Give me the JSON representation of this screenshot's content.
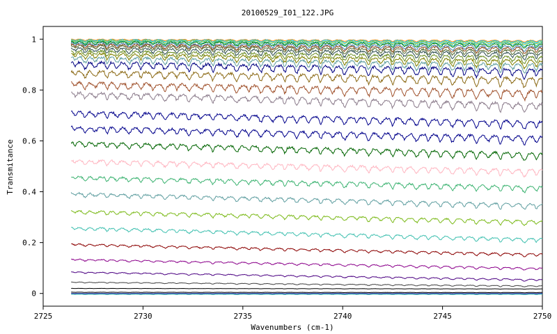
{
  "chart_data": {
    "type": "line",
    "title": "20100529_I01_122.JPG",
    "xlabel": "Wavenumbers (cm-1)",
    "ylabel": "Transmitance",
    "xlim": [
      2725,
      2750
    ],
    "ylim": [
      -0.05,
      1.05
    ],
    "x_ticks": [
      2725,
      2730,
      2735,
      2740,
      2745,
      2750
    ],
    "y_ticks": [
      0,
      0.2,
      0.4,
      0.6,
      0.8,
      1
    ],
    "y_tick_labels": [
      "0",
      "0.2",
      "0.4",
      "0.6",
      "0.8",
      "1"
    ],
    "x_range_of_data": [
      2726.4,
      2750
    ],
    "grid": false,
    "legend": "none",
    "absorption_lines_cm1": [
      2726.6,
      2727.1,
      2727.6,
      2728.2,
      2728.7,
      2729.3,
      2729.9,
      2730.5,
      2731.1,
      2731.7,
      2732.3,
      2732.9,
      2733.5,
      2734.1,
      2734.7,
      2735.3,
      2735.9,
      2736.5,
      2737.1,
      2737.7,
      2738.3,
      2738.9,
      2739.5,
      2740.1,
      2740.7,
      2741.3,
      2741.9,
      2742.5,
      2743.1,
      2743.7,
      2744.3,
      2744.9,
      2745.5,
      2746.1,
      2746.7,
      2747.3,
      2747.9,
      2748.5,
      2749.1,
      2749.7
    ],
    "series": [
      {
        "baseline_start": 1.0,
        "baseline_end": 0.995,
        "depth": 0.006,
        "color": "#ff8c00"
      },
      {
        "baseline_start": 0.998,
        "baseline_end": 0.993,
        "depth": 0.008,
        "color": "#00bfff"
      },
      {
        "baseline_start": 0.996,
        "baseline_end": 0.99,
        "depth": 0.01,
        "color": "#9acd32"
      },
      {
        "baseline_start": 0.993,
        "baseline_end": 0.985,
        "depth": 0.012,
        "color": "#20b2aa"
      },
      {
        "baseline_start": 0.99,
        "baseline_end": 0.98,
        "depth": 0.014,
        "color": "#008000"
      },
      {
        "baseline_start": 0.985,
        "baseline_end": 0.972,
        "depth": 0.016,
        "color": "#4682b4"
      },
      {
        "baseline_start": 0.98,
        "baseline_end": 0.965,
        "depth": 0.018,
        "color": "#8b4513"
      },
      {
        "baseline_start": 0.975,
        "baseline_end": 0.955,
        "depth": 0.02,
        "color": "#556b2f"
      },
      {
        "baseline_start": 0.965,
        "baseline_end": 0.945,
        "depth": 0.022,
        "color": "#2f4f4f"
      },
      {
        "baseline_start": 0.955,
        "baseline_end": 0.93,
        "depth": 0.024,
        "color": "#6b8e23"
      },
      {
        "baseline_start": 0.945,
        "baseline_end": 0.915,
        "depth": 0.026,
        "color": "#808000"
      },
      {
        "baseline_start": 0.93,
        "baseline_end": 0.9,
        "depth": 0.028,
        "color": "#5f9ea0"
      },
      {
        "baseline_start": 0.91,
        "baseline_end": 0.88,
        "depth": 0.03,
        "color": "#000080"
      },
      {
        "baseline_start": 0.875,
        "baseline_end": 0.845,
        "depth": 0.03,
        "color": "#8b6914"
      },
      {
        "baseline_start": 0.83,
        "baseline_end": 0.795,
        "depth": 0.03,
        "color": "#a0522d"
      },
      {
        "baseline_start": 0.79,
        "baseline_end": 0.745,
        "depth": 0.028,
        "color": "#8b7b8b"
      },
      {
        "baseline_start": 0.715,
        "baseline_end": 0.675,
        "depth": 0.026,
        "color": "#00008b"
      },
      {
        "baseline_start": 0.655,
        "baseline_end": 0.615,
        "depth": 0.026,
        "color": "#00008b"
      },
      {
        "baseline_start": 0.595,
        "baseline_end": 0.55,
        "depth": 0.024,
        "color": "#006400"
      },
      {
        "baseline_start": 0.525,
        "baseline_end": 0.485,
        "depth": 0.022,
        "color": "#ffb6c1"
      },
      {
        "baseline_start": 0.46,
        "baseline_end": 0.42,
        "depth": 0.02,
        "color": "#3cb371"
      },
      {
        "baseline_start": 0.395,
        "baseline_end": 0.35,
        "depth": 0.018,
        "color": "#5f9ea0"
      },
      {
        "baseline_start": 0.325,
        "baseline_end": 0.285,
        "depth": 0.016,
        "color": "#7cba1a"
      },
      {
        "baseline_start": 0.26,
        "baseline_end": 0.215,
        "depth": 0.014,
        "color": "#40c0b0"
      },
      {
        "baseline_start": 0.195,
        "baseline_end": 0.155,
        "depth": 0.01,
        "color": "#8b0000"
      },
      {
        "baseline_start": 0.135,
        "baseline_end": 0.1,
        "depth": 0.008,
        "color": "#8b008b"
      },
      {
        "baseline_start": 0.085,
        "baseline_end": 0.055,
        "depth": 0.006,
        "color": "#4b0082"
      },
      {
        "baseline_start": 0.045,
        "baseline_end": 0.03,
        "depth": 0.004,
        "color": "#404040"
      },
      {
        "baseline_start": 0.02,
        "baseline_end": 0.018,
        "depth": 0.001,
        "color": "#000000"
      },
      {
        "baseline_start": 0.005,
        "baseline_end": 0.004,
        "depth": 0.001,
        "color": "#000000"
      },
      {
        "baseline_start": 0.0,
        "baseline_end": 0.0,
        "depth": 0.001,
        "color": "#00008b"
      },
      {
        "baseline_start": -0.003,
        "baseline_end": -0.003,
        "depth": 0.001,
        "color": "#20b2aa"
      }
    ]
  }
}
